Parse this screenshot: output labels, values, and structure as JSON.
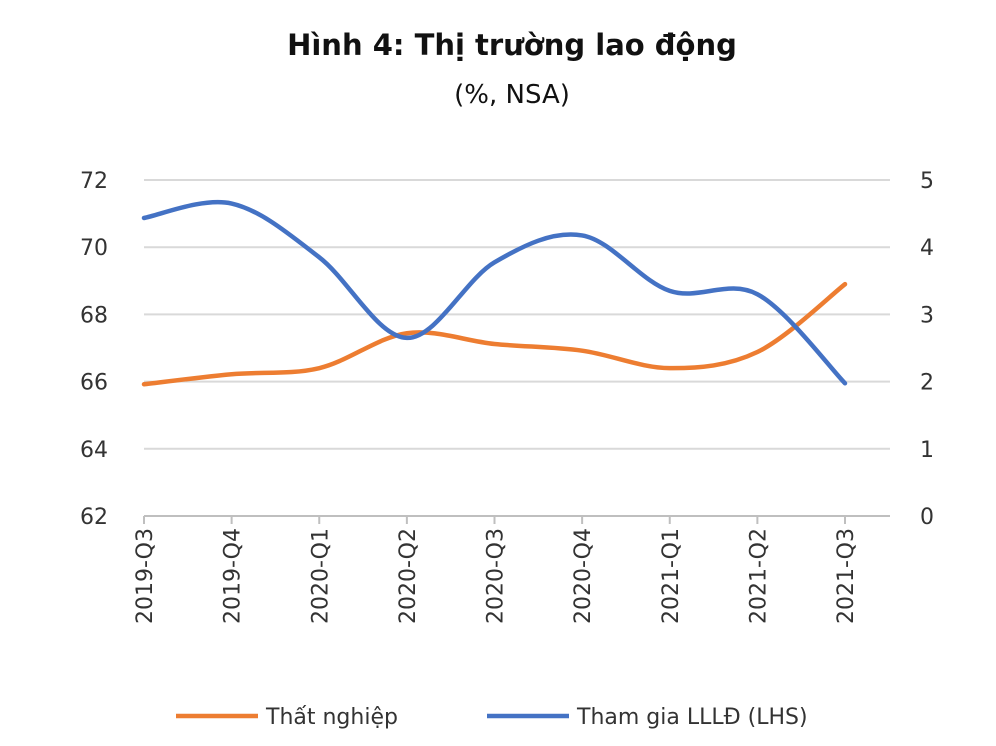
{
  "chart_data": {
    "type": "line",
    "title": "Hình 4: Thị trường lao động",
    "subtitle": "(%, NSA)",
    "categories": [
      "2019-Q3",
      "2019-Q4",
      "2020-Q1",
      "2020-Q2",
      "2020-Q3",
      "2020-Q4",
      "2021-Q1",
      "2021-Q2",
      "2021-Q3"
    ],
    "y_left": {
      "range": [
        62,
        72
      ],
      "ticks": [
        "62",
        "64",
        "66",
        "68",
        "70",
        "72"
      ]
    },
    "y_right": {
      "range": [
        0,
        5
      ],
      "ticks": [
        "0",
        "1",
        "2",
        "3",
        "4",
        "5"
      ]
    },
    "grid": true,
    "legend_placement": "bottom",
    "series": [
      {
        "name": "Thất nghiệp",
        "axis": "right",
        "color": "#ED7D31",
        "values": [
          1.96,
          2.11,
          2.2,
          2.72,
          2.56,
          2.46,
          2.2,
          2.44,
          3.45
        ]
      },
      {
        "name": "Tham gia LLLĐ (LHS)",
        "axis": "left",
        "color": "#4472C4",
        "values": [
          70.87,
          71.3,
          69.7,
          67.3,
          69.55,
          70.35,
          68.7,
          68.6,
          65.95
        ]
      }
    ]
  }
}
